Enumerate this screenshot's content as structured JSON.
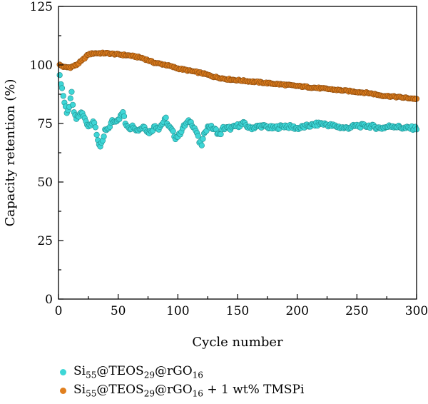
{
  "chart_data": {
    "type": "scatter",
    "title": "",
    "xlabel": "Cycle number",
    "ylabel": "Capacity retention (%)",
    "xlim": [
      0,
      300
    ],
    "ylim": [
      0,
      125
    ],
    "xticks": [
      0,
      50,
      100,
      150,
      200,
      250,
      300
    ],
    "yticks": [
      0,
      25,
      50,
      75,
      100,
      125
    ],
    "grid": false,
    "legend_position": "bottom",
    "series": [
      {
        "name": "Si55@TEOS29@rGO16",
        "color": "#3ed6d6",
        "anchors": [
          [
            1,
            95
          ],
          [
            3,
            90
          ],
          [
            5,
            84
          ],
          [
            7,
            80
          ],
          [
            9,
            82
          ],
          [
            11,
            88
          ],
          [
            13,
            79
          ],
          [
            15,
            77
          ],
          [
            17,
            78
          ],
          [
            19,
            80
          ],
          [
            21,
            78
          ],
          [
            23,
            76
          ],
          [
            25,
            74
          ],
          [
            27,
            75
          ],
          [
            29,
            76
          ],
          [
            31,
            73
          ],
          [
            33,
            68
          ],
          [
            35,
            65
          ],
          [
            37,
            67
          ],
          [
            39,
            72
          ],
          [
            41,
            72
          ],
          [
            43,
            74
          ],
          [
            45,
            76
          ],
          [
            47,
            76
          ],
          [
            50,
            77
          ],
          [
            52,
            78
          ],
          [
            54,
            80
          ],
          [
            56,
            75
          ],
          [
            58,
            74
          ],
          [
            60,
            73
          ],
          [
            63,
            74
          ],
          [
            66,
            72
          ],
          [
            69,
            73
          ],
          [
            72,
            74
          ],
          [
            75,
            71
          ],
          [
            78,
            72
          ],
          [
            81,
            74
          ],
          [
            84,
            73
          ],
          [
            87,
            75
          ],
          [
            90,
            77
          ],
          [
            92,
            74
          ],
          [
            95,
            72
          ],
          [
            98,
            69
          ],
          [
            101,
            70
          ],
          [
            104,
            73
          ],
          [
            107,
            75
          ],
          [
            110,
            76
          ],
          [
            113,
            74
          ],
          [
            116,
            71
          ],
          [
            118,
            67
          ],
          [
            120,
            66
          ],
          [
            123,
            72
          ],
          [
            126,
            74
          ],
          [
            129,
            73
          ],
          [
            132,
            72
          ],
          [
            135,
            70
          ],
          [
            138,
            73
          ],
          [
            145,
            73
          ],
          [
            150,
            74
          ],
          [
            155,
            75
          ],
          [
            160,
            73
          ],
          [
            170,
            74
          ],
          [
            180,
            73
          ],
          [
            190,
            74
          ],
          [
            200,
            73
          ],
          [
            210,
            74
          ],
          [
            220,
            75
          ],
          [
            230,
            74
          ],
          [
            240,
            73
          ],
          [
            250,
            74
          ],
          [
            260,
            74
          ],
          [
            270,
            73
          ],
          [
            280,
            74
          ],
          [
            290,
            73
          ],
          [
            300,
            73
          ]
        ]
      },
      {
        "name": "Si55@TEOS29@rGO16 + 1 wt% TMSPi",
        "color": "#e07f1e",
        "anchors": [
          [
            1,
            100
          ],
          [
            5,
            99
          ],
          [
            10,
            99
          ],
          [
            15,
            100
          ],
          [
            20,
            102
          ],
          [
            25,
            104.5
          ],
          [
            30,
            105
          ],
          [
            40,
            105
          ],
          [
            50,
            104.5
          ],
          [
            60,
            104
          ],
          [
            70,
            103
          ],
          [
            80,
            101
          ],
          [
            90,
            100
          ],
          [
            100,
            98.5
          ],
          [
            110,
            97.5
          ],
          [
            120,
            96.5
          ],
          [
            130,
            95
          ],
          [
            140,
            94
          ],
          [
            150,
            93.5
          ],
          [
            160,
            93
          ],
          [
            170,
            92.5
          ],
          [
            180,
            92
          ],
          [
            190,
            91.5
          ],
          [
            200,
            91
          ],
          [
            210,
            90.5
          ],
          [
            220,
            90
          ],
          [
            230,
            89.5
          ],
          [
            240,
            89
          ],
          [
            250,
            88.5
          ],
          [
            260,
            88
          ],
          [
            270,
            87
          ],
          [
            280,
            86.5
          ],
          [
            290,
            86
          ],
          [
            300,
            85.5
          ]
        ]
      }
    ]
  }
}
